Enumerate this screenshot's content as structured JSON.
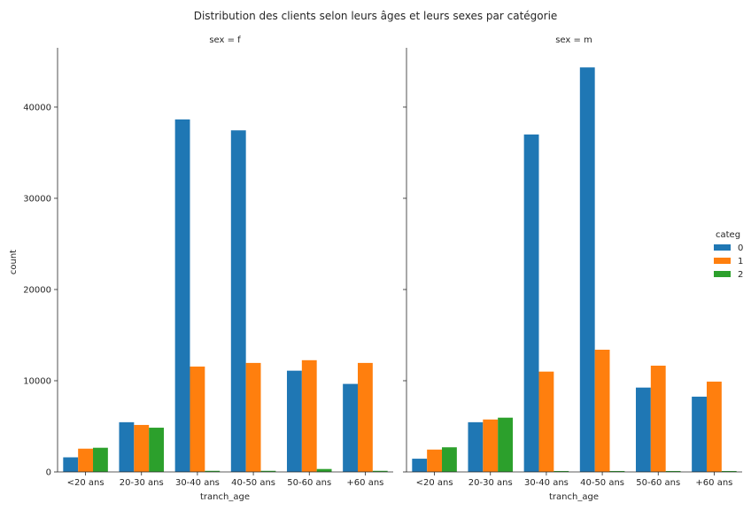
{
  "chart_data": {
    "type": "bar",
    "title": "Distribution des clients selon leurs âges et leurs sexes par catégorie",
    "xlabel": "tranch_age",
    "ylabel": "count",
    "ylim": [
      0,
      46500
    ],
    "yticks": [
      0,
      10000,
      20000,
      30000,
      40000
    ],
    "grid": false,
    "legend_placement": "right",
    "legend_title": "categ",
    "categories": [
      "<20 ans",
      "20-30 ans",
      "30-40 ans",
      "40-50 ans",
      "50-60 ans",
      "+60 ans"
    ],
    "series_colors": [
      "#1f77b4",
      "#ff7f0e",
      "#2ca02c"
    ],
    "facets": [
      {
        "title": "sex = f",
        "series": [
          {
            "name": "0",
            "values": [
              1600,
              5450,
              38650,
              37450,
              11100,
              9650
            ]
          },
          {
            "name": "1",
            "values": [
              2550,
              5150,
              11550,
              11950,
              12250,
              11950
            ]
          },
          {
            "name": "2",
            "values": [
              2650,
              4850,
              120,
              120,
              320,
              120
            ]
          }
        ]
      },
      {
        "title": "sex = m",
        "series": [
          {
            "name": "0",
            "values": [
              1450,
              5450,
              37000,
              44350,
              9250,
              8250
            ]
          },
          {
            "name": "1",
            "values": [
              2450,
              5750,
              11000,
              13400,
              11650,
              9900
            ]
          },
          {
            "name": "2",
            "values": [
              2700,
              5950,
              100,
              100,
              100,
              100
            ]
          }
        ]
      }
    ]
  }
}
